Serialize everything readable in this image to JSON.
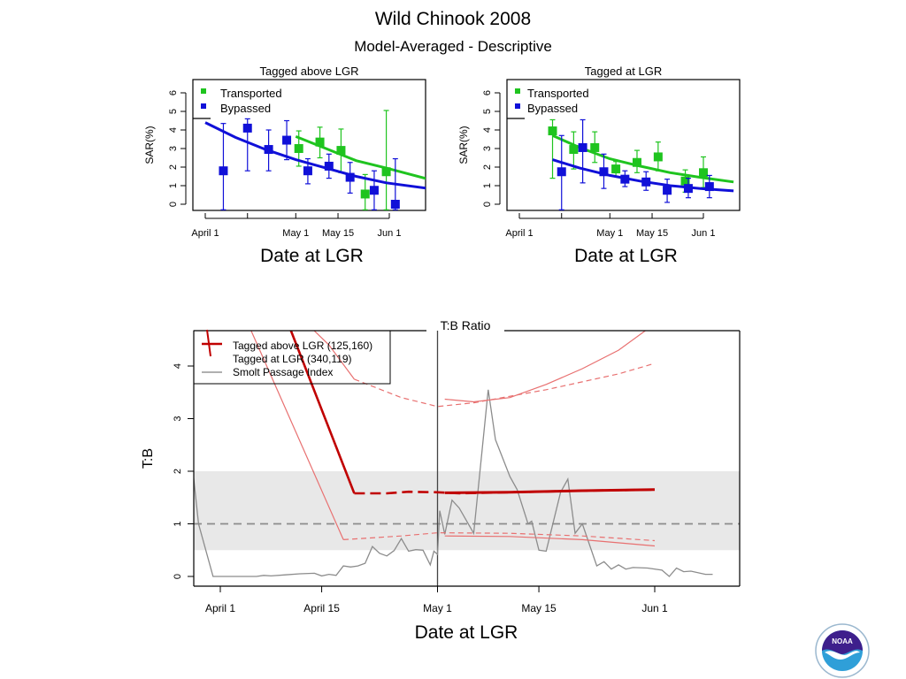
{
  "page": {
    "title": "Wild Chinook 2008",
    "subtitle": "Model-Averaged - Descriptive",
    "logo": "noaa-logo"
  },
  "colors": {
    "transported": "#1fc41f",
    "bypassed": "#1010d8",
    "tb_red": "#c00000",
    "ci_red": "#e87070",
    "smolt_gray": "#8c8c8c",
    "band_gray": "#e8e8e8"
  },
  "chart_data": [
    {
      "id": "sar-above",
      "type": "scatter",
      "title": "Tagged above LGR",
      "xlabel": "Date at LGR",
      "ylabel": "SAR(%)",
      "ylim": [
        0,
        6
      ],
      "yticks": [
        0,
        1,
        2,
        3,
        4,
        5,
        6
      ],
      "x_unit": "days since April 1",
      "xlim": [
        -4,
        74
      ],
      "xticks": [
        {
          "day": 0,
          "label": "April 1"
        },
        {
          "day": 14,
          "label": ""
        },
        {
          "day": 30,
          "label": "May 1"
        },
        {
          "day": 44,
          "label": "May 15"
        },
        {
          "day": 61,
          "label": "Jun 1"
        }
      ],
      "legend": {
        "position": "top-left",
        "entries": [
          "Transported",
          "Bypassed"
        ]
      },
      "series": [
        {
          "name": "Transported",
          "points": [
            {
              "day": 31,
              "y": 3.0,
              "lo": 2.05,
              "hi": 3.95
            },
            {
              "day": 38,
              "y": 3.35,
              "lo": 2.5,
              "hi": 4.15
            },
            {
              "day": 45,
              "y": 2.9,
              "lo": 1.7,
              "hi": 4.05
            },
            {
              "day": 53,
              "y": 0.55,
              "lo": -0.3,
              "hi": 1.6
            },
            {
              "day": 60,
              "y": 1.75,
              "lo": -0.3,
              "hi": 5.05
            }
          ],
          "fit": [
            [
              30,
              3.65
            ],
            [
              40,
              3.0
            ],
            [
              50,
              2.35
            ],
            [
              60,
              1.95
            ],
            [
              74,
              1.35
            ]
          ]
        },
        {
          "name": "Bypassed",
          "points": [
            {
              "day": 6,
              "y": 1.8,
              "lo": -0.3,
              "hi": 4.35
            },
            {
              "day": 14,
              "y": 4.1,
              "lo": 1.8,
              "hi": 4.6
            },
            {
              "day": 21,
              "y": 2.95,
              "lo": 1.8,
              "hi": 4.0
            },
            {
              "day": 27,
              "y": 3.45,
              "lo": 2.4,
              "hi": 4.5
            },
            {
              "day": 34,
              "y": 1.8,
              "lo": 1.1,
              "hi": 2.45
            },
            {
              "day": 41,
              "y": 2.05,
              "lo": 1.4,
              "hi": 2.7
            },
            {
              "day": 48,
              "y": 1.45,
              "lo": 0.6,
              "hi": 2.25
            },
            {
              "day": 56,
              "y": 0.75,
              "lo": -0.3,
              "hi": 1.8
            },
            {
              "day": 63,
              "y": 0.0,
              "lo": -0.3,
              "hi": 2.45
            }
          ],
          "fit": [
            [
              0,
              4.4
            ],
            [
              10,
              3.6
            ],
            [
              20,
              2.95
            ],
            [
              30,
              2.4
            ],
            [
              40,
              1.95
            ],
            [
              50,
              1.5
            ],
            [
              60,
              1.15
            ],
            [
              74,
              0.85
            ]
          ]
        }
      ]
    },
    {
      "id": "sar-at",
      "type": "scatter",
      "title": "Tagged at LGR",
      "xlabel": "Date at LGR",
      "ylabel": "SAR(%)",
      "ylim": [
        0,
        6
      ],
      "yticks": [
        0,
        1,
        2,
        3,
        4,
        5,
        6
      ],
      "x_unit": "days since April 1",
      "xlim": [
        -4,
        74
      ],
      "xticks": [
        {
          "day": 0,
          "label": "April 1"
        },
        {
          "day": 14,
          "label": ""
        },
        {
          "day": 30,
          "label": "May 1"
        },
        {
          "day": 44,
          "label": "May 15"
        },
        {
          "day": 61,
          "label": "Jun 1"
        }
      ],
      "legend": {
        "position": "top-left",
        "entries": [
          "Transported",
          "Bypassed"
        ]
      },
      "series": [
        {
          "name": "Transported",
          "points": [
            {
              "day": 11,
              "y": 3.95,
              "lo": 1.4,
              "hi": 4.55
            },
            {
              "day": 18,
              "y": 2.95,
              "lo": 1.9,
              "hi": 3.9
            },
            {
              "day": 25,
              "y": 3.05,
              "lo": 2.25,
              "hi": 3.9
            },
            {
              "day": 32,
              "y": 1.9,
              "lo": 1.5,
              "hi": 2.3
            },
            {
              "day": 39,
              "y": 2.25,
              "lo": 1.7,
              "hi": 2.9
            },
            {
              "day": 46,
              "y": 2.55,
              "lo": 1.8,
              "hi": 3.35
            },
            {
              "day": 55,
              "y": 1.25,
              "lo": 0.65,
              "hi": 1.85
            },
            {
              "day": 61,
              "y": 1.7,
              "lo": 0.9,
              "hi": 2.55
            }
          ],
          "fit": [
            [
              11,
              3.7
            ],
            [
              20,
              3.05
            ],
            [
              30,
              2.45
            ],
            [
              40,
              2.05
            ],
            [
              50,
              1.7
            ],
            [
              60,
              1.45
            ],
            [
              71,
              1.2
            ]
          ]
        },
        {
          "name": "Bypassed",
          "points": [
            {
              "day": 14,
              "y": 1.75,
              "lo": -0.3,
              "hi": 3.7
            },
            {
              "day": 21,
              "y": 3.05,
              "lo": 1.15,
              "hi": 4.55
            },
            {
              "day": 28,
              "y": 1.75,
              "lo": 0.85,
              "hi": 2.7
            },
            {
              "day": 35,
              "y": 1.35,
              "lo": 0.95,
              "hi": 1.8
            },
            {
              "day": 42,
              "y": 1.2,
              "lo": 0.75,
              "hi": 1.75
            },
            {
              "day": 49,
              "y": 0.75,
              "lo": 0.1,
              "hi": 1.35
            },
            {
              "day": 56,
              "y": 0.85,
              "lo": 0.35,
              "hi": 1.4
            },
            {
              "day": 63,
              "y": 0.95,
              "lo": 0.35,
              "hi": 1.55
            }
          ],
          "fit": [
            [
              11,
              2.4
            ],
            [
              20,
              1.95
            ],
            [
              30,
              1.55
            ],
            [
              40,
              1.25
            ],
            [
              50,
              1.0
            ],
            [
              60,
              0.85
            ],
            [
              71,
              0.72
            ]
          ]
        }
      ]
    },
    {
      "id": "tb-ratio",
      "type": "line",
      "title": "T:B Ratio",
      "xlabel": "Date at LGR",
      "ylabel": "T:B",
      "ylim": [
        -0.2,
        4.65
      ],
      "yticks": [
        0,
        1,
        2,
        3,
        4
      ],
      "x_unit": "days since April 1",
      "xlim": [
        -3.7,
        71.5
      ],
      "xticks": [
        {
          "day": 0,
          "label": "April 1"
        },
        {
          "day": 14,
          "label": "April 15"
        },
        {
          "day": 30,
          "label": "May 1"
        },
        {
          "day": 44,
          "label": "May 15"
        },
        {
          "day": 60,
          "label": "Jun 1"
        }
      ],
      "vline_day": 30,
      "reference_line": 1,
      "band": [
        0.5,
        2
      ],
      "legend": {
        "position": "top-left",
        "entries": [
          "Tagged above LGR  (125,160)",
          "Tagged at LGR  (340,119)",
          "Smolt Passage Index"
        ]
      },
      "series": [
        {
          "name": "Tagged above LGR",
          "style": "solid",
          "estimate": [
            [
              6,
              6.0
            ],
            [
              18.5,
              1.58
            ]
          ],
          "estimate_dashed": [
            [
              18.5,
              1.58
            ],
            [
              23,
              1.58
            ],
            [
              26,
              1.61
            ],
            [
              30,
              1.6
            ],
            [
              33,
              1.58
            ],
            [
              40,
              1.6
            ],
            [
              50,
              1.63
            ],
            [
              60,
              1.65
            ]
          ],
          "upper": [
            [
              3,
              6.0
            ],
            [
              15,
              4.4
            ],
            [
              18.5,
              3.75
            ]
          ],
          "upper_dashed": [
            [
              18.5,
              3.75
            ],
            [
              25,
              3.4
            ],
            [
              30,
              3.23
            ],
            [
              35,
              3.3
            ],
            [
              45,
              3.55
            ],
            [
              55,
              3.85
            ],
            [
              60,
              4.05
            ]
          ],
          "lower": [
            [
              0,
              6.0
            ],
            [
              17,
              0.7
            ]
          ],
          "lower_dashed": [
            [
              17,
              0.7
            ],
            [
              25,
              0.77
            ],
            [
              30,
              0.83
            ],
            [
              40,
              0.82
            ],
            [
              50,
              0.77
            ],
            [
              60,
              0.68
            ]
          ]
        },
        {
          "name": "Tagged at LGR",
          "style": "solid",
          "estimate": [
            [
              31,
              1.59
            ],
            [
              40,
              1.6
            ],
            [
              50,
              1.63
            ],
            [
              60,
              1.65
            ]
          ],
          "upper": [
            [
              31,
              3.37
            ],
            [
              35,
              3.32
            ],
            [
              40,
              3.4
            ],
            [
              45,
              3.65
            ],
            [
              50,
              3.95
            ],
            [
              55,
              4.3
            ],
            [
              59,
              4.7
            ]
          ],
          "lower": [
            [
              31,
              0.77
            ],
            [
              40,
              0.76
            ],
            [
              50,
              0.7
            ],
            [
              60,
              0.58
            ]
          ]
        },
        {
          "name": "Smolt Passage Index",
          "values": [
            [
              -3.7,
              1.9
            ],
            [
              -3,
              1.0
            ],
            [
              -1,
              0.0
            ],
            [
              1,
              0.0
            ],
            [
              3,
              0.0
            ],
            [
              5,
              0.0
            ],
            [
              6,
              0.02
            ],
            [
              7,
              0.01
            ],
            [
              9,
              0.03
            ],
            [
              11,
              0.05
            ],
            [
              13,
              0.06
            ],
            [
              14,
              0.01
            ],
            [
              15,
              0.04
            ],
            [
              16,
              0.02
            ],
            [
              17,
              0.2
            ],
            [
              18,
              0.18
            ],
            [
              19,
              0.2
            ],
            [
              20,
              0.25
            ],
            [
              21,
              0.57
            ],
            [
              22,
              0.44
            ],
            [
              23,
              0.39
            ],
            [
              24,
              0.49
            ],
            [
              25,
              0.72
            ],
            [
              26,
              0.48
            ],
            [
              27,
              0.51
            ],
            [
              28,
              0.5
            ],
            [
              29,
              0.22
            ],
            [
              29.5,
              0.48
            ],
            [
              30,
              0.42
            ],
            [
              30.3,
              1.25
            ],
            [
              31,
              0.8
            ],
            [
              32,
              1.45
            ],
            [
              33,
              1.3
            ],
            [
              35,
              0.82
            ],
            [
              37,
              3.55
            ],
            [
              38,
              2.6
            ],
            [
              40,
              1.9
            ],
            [
              41,
              1.65
            ],
            [
              42.5,
              1.0
            ],
            [
              43,
              1.05
            ],
            [
              44,
              0.5
            ],
            [
              45,
              0.48
            ],
            [
              47,
              1.6
            ],
            [
              48,
              1.85
            ],
            [
              49,
              0.82
            ],
            [
              50,
              1.0
            ],
            [
              52,
              0.2
            ],
            [
              53,
              0.28
            ],
            [
              54,
              0.14
            ],
            [
              55,
              0.22
            ],
            [
              56,
              0.14
            ],
            [
              57,
              0.17
            ],
            [
              59,
              0.16
            ],
            [
              61,
              0.12
            ],
            [
              62,
              0.0
            ],
            [
              63,
              0.16
            ],
            [
              64,
              0.09
            ],
            [
              65,
              0.1
            ],
            [
              67,
              0.04
            ],
            [
              68,
              0.04
            ]
          ]
        }
      ]
    }
  ]
}
